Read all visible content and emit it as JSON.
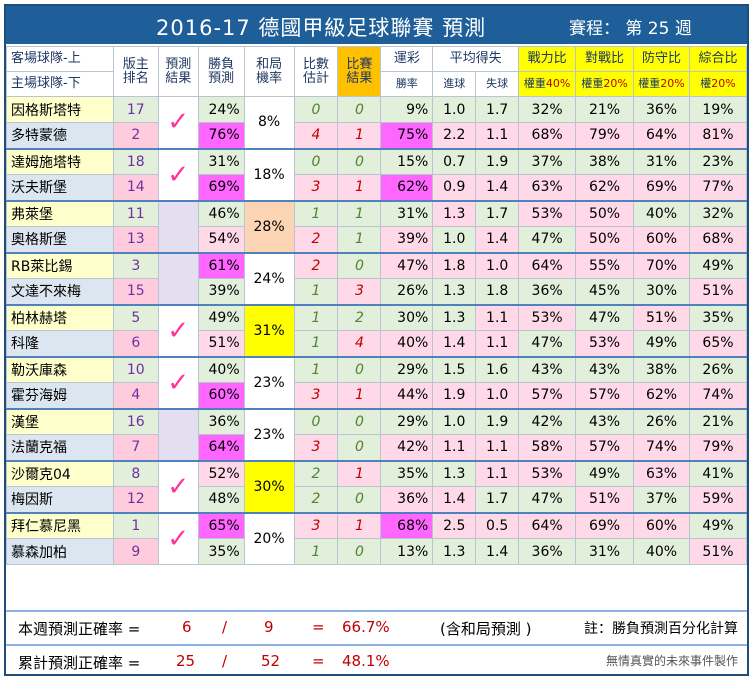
{
  "title": "2016-17 德國甲級足球聯賽  預測",
  "schedule": "賽程： 第 25 週",
  "headers": {
    "team_top": "客場球隊-上",
    "team_bot": "主場球隊-下",
    "rank": "版主排名",
    "pred": "預測結果",
    "winp": "勝負預測",
    "draw": "和局機率",
    "score": "比數估計",
    "result": "比賽結果",
    "lottery": "運彩",
    "lottery_sub": "勝率",
    "avg": "平均得失",
    "goals_for": "進球",
    "goals_against": "失球",
    "power": "戰力比",
    "power_w": "權重",
    "power_p": "40%",
    "h2h": "對戰比",
    "h2h_w": "權重",
    "h2h_p": "20%",
    "defense": "防守比",
    "def_w": "權重",
    "def_p": "20%",
    "overall": "綜合比",
    "ov_w": "權",
    "ov_p": "20%"
  },
  "matches": [
    {
      "away": {
        "name": "因格斯塔特",
        "rank": "17",
        "win": "24%",
        "score": "0",
        "result": "0",
        "lot": "9%",
        "gf": "1.0",
        "ga": "1.7",
        "pw": "32%",
        "h2h": "21%",
        "df": "36%",
        "ov": "19%"
      },
      "home": {
        "name": "多特蒙德",
        "rank": "2",
        "win": "76%",
        "score": "4",
        "result": "1",
        "lot": "75%",
        "gf": "2.2",
        "ga": "1.1",
        "pw": "68%",
        "h2h": "79%",
        "df": "64%",
        "ov": "81%"
      },
      "draw": "8%",
      "correct": "✓"
    },
    {
      "away": {
        "name": "達姆施塔特",
        "rank": "18",
        "win": "31%",
        "score": "0",
        "result": "0",
        "lot": "15%",
        "gf": "0.7",
        "ga": "1.9",
        "pw": "37%",
        "h2h": "38%",
        "df": "31%",
        "ov": "23%"
      },
      "home": {
        "name": "沃夫斯堡",
        "rank": "14",
        "win": "69%",
        "score": "3",
        "result": "1",
        "lot": "62%",
        "gf": "0.9",
        "ga": "1.4",
        "pw": "63%",
        "h2h": "62%",
        "df": "69%",
        "ov": "77%"
      },
      "draw": "18%",
      "correct": "✓"
    },
    {
      "away": {
        "name": "弗萊堡",
        "rank": "11",
        "win": "46%",
        "score": "1",
        "result": "1",
        "lot": "31%",
        "gf": "1.3",
        "ga": "1.7",
        "pw": "53%",
        "h2h": "50%",
        "df": "40%",
        "ov": "32%"
      },
      "home": {
        "name": "奧格斯堡",
        "rank": "13",
        "win": "54%",
        "score": "2",
        "result": "1",
        "lot": "39%",
        "gf": "1.0",
        "ga": "1.4",
        "pw": "47%",
        "h2h": "50%",
        "df": "60%",
        "ov": "68%"
      },
      "draw": "28%",
      "correct": ""
    },
    {
      "away": {
        "name": "RB萊比錫",
        "rank": "3",
        "win": "61%",
        "score": "2",
        "result": "0",
        "lot": "47%",
        "gf": "1.8",
        "ga": "1.0",
        "pw": "64%",
        "h2h": "55%",
        "df": "70%",
        "ov": "49%"
      },
      "home": {
        "name": "文達不來梅",
        "rank": "15",
        "win": "39%",
        "score": "1",
        "result": "3",
        "lot": "26%",
        "gf": "1.3",
        "ga": "1.8",
        "pw": "36%",
        "h2h": "45%",
        "df": "30%",
        "ov": "51%"
      },
      "draw": "24%",
      "correct": ""
    },
    {
      "away": {
        "name": "柏林赫塔",
        "rank": "5",
        "win": "49%",
        "score": "1",
        "result": "2",
        "lot": "30%",
        "gf": "1.3",
        "ga": "1.1",
        "pw": "53%",
        "h2h": "47%",
        "df": "51%",
        "ov": "35%"
      },
      "home": {
        "name": "科隆",
        "rank": "6",
        "win": "51%",
        "score": "1",
        "result": "4",
        "lot": "40%",
        "gf": "1.4",
        "ga": "1.1",
        "pw": "47%",
        "h2h": "53%",
        "df": "49%",
        "ov": "65%"
      },
      "draw": "31%",
      "correct": "✓"
    },
    {
      "away": {
        "name": "勒沃庫森",
        "rank": "10",
        "win": "40%",
        "score": "1",
        "result": "0",
        "lot": "29%",
        "gf": "1.5",
        "ga": "1.6",
        "pw": "43%",
        "h2h": "43%",
        "df": "38%",
        "ov": "26%"
      },
      "home": {
        "name": "霍芬海姆",
        "rank": "4",
        "win": "60%",
        "score": "3",
        "result": "1",
        "lot": "44%",
        "gf": "1.9",
        "ga": "1.0",
        "pw": "57%",
        "h2h": "57%",
        "df": "62%",
        "ov": "74%"
      },
      "draw": "23%",
      "correct": "✓"
    },
    {
      "away": {
        "name": "漢堡",
        "rank": "16",
        "win": "36%",
        "score": "0",
        "result": "0",
        "lot": "29%",
        "gf": "1.0",
        "ga": "1.9",
        "pw": "42%",
        "h2h": "43%",
        "df": "26%",
        "ov": "21%"
      },
      "home": {
        "name": "法蘭克福",
        "rank": "7",
        "win": "64%",
        "score": "3",
        "result": "0",
        "lot": "42%",
        "gf": "1.1",
        "ga": "1.1",
        "pw": "58%",
        "h2h": "57%",
        "df": "74%",
        "ov": "79%"
      },
      "draw": "23%",
      "correct": ""
    },
    {
      "away": {
        "name": "沙爾克04",
        "rank": "8",
        "win": "52%",
        "score": "2",
        "result": "1",
        "lot": "35%",
        "gf": "1.3",
        "ga": "1.1",
        "pw": "53%",
        "h2h": "49%",
        "df": "63%",
        "ov": "41%"
      },
      "home": {
        "name": "梅因斯",
        "rank": "12",
        "win": "48%",
        "score": "2",
        "result": "0",
        "lot": "36%",
        "gf": "1.4",
        "ga": "1.7",
        "pw": "47%",
        "h2h": "51%",
        "df": "37%",
        "ov": "59%"
      },
      "draw": "30%",
      "correct": "✓"
    },
    {
      "away": {
        "name": "拜仁慕尼黑",
        "rank": "1",
        "win": "65%",
        "score": "3",
        "result": "1",
        "lot": "68%",
        "gf": "2.5",
        "ga": "0.5",
        "pw": "64%",
        "h2h": "69%",
        "df": "60%",
        "ov": "49%"
      },
      "home": {
        "name": "慕森加柏",
        "rank": "9",
        "win": "35%",
        "score": "1",
        "result": "0",
        "lot": "13%",
        "gf": "1.3",
        "ga": "1.4",
        "pw": "36%",
        "h2h": "31%",
        "df": "40%",
        "ov": "51%"
      },
      "draw": "20%",
      "correct": "✓"
    }
  ],
  "footer1": {
    "label": "本週預測正確率 =",
    "a": "6",
    "slash": "/",
    "b": "9",
    "eq": "=",
    "pct": "66.7%",
    "note": "(含和局預測 )",
    "note2": "註：勝負預測百分化計算"
  },
  "footer2": {
    "label": "累計預測正確率 =",
    "a": "25",
    "slash": "/",
    "b": "52",
    "eq": "=",
    "pct": "48.1%",
    "note": "無情真實的未來事件製作"
  }
}
